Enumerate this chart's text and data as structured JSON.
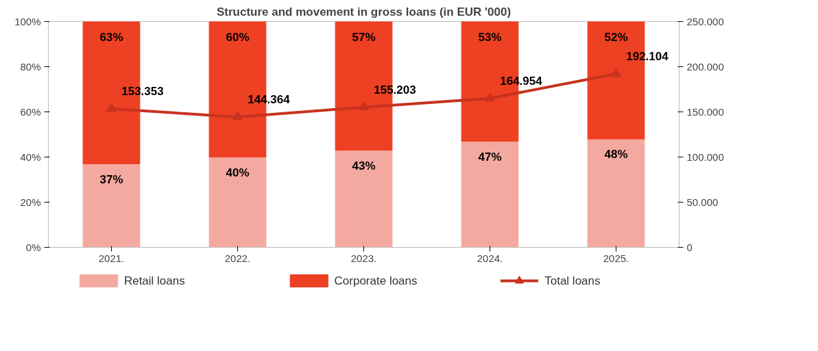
{
  "chart_data": {
    "type": "bar",
    "title": "Structure and movement in gross loans (in EUR '000)",
    "stacked": true,
    "categories": [
      "2021.",
      "2022.",
      "2023.",
      "2024.",
      "2025."
    ],
    "series": [
      {
        "name": "Retail loans",
        "color": "#f4a9a0",
        "values": [
          37,
          40,
          43,
          47,
          48
        ],
        "value_labels": [
          "37%",
          "40%",
          "43%",
          "47%",
          "48%"
        ]
      },
      {
        "name": "Corporate loans",
        "color": "#ee4023",
        "values": [
          63,
          60,
          57,
          53,
          52
        ],
        "value_labels": [
          "63%",
          "60%",
          "57%",
          "53%",
          "52%"
        ]
      },
      {
        "name": "Total loans",
        "type": "line",
        "axis": "y2",
        "color": "#c8321f",
        "marker": "triangle",
        "values": [
          153353,
          144364,
          155203,
          164954,
          192104
        ],
        "value_labels": [
          "153.353",
          "144.364",
          "155.203",
          "164.954",
          "192.104"
        ]
      }
    ],
    "ylim": [
      0,
      100
    ],
    "yticks": [
      {
        "value": 0,
        "label": "0%"
      },
      {
        "value": 20,
        "label": "20%"
      },
      {
        "value": 40,
        "label": "40%"
      },
      {
        "value": 60,
        "label": "60%"
      },
      {
        "value": 80,
        "label": "80%"
      },
      {
        "value": 100,
        "label": "100%"
      }
    ],
    "y2lim": [
      0,
      250000
    ],
    "y2ticks": [
      0,
      {
        "value": 50000,
        "label": "50.000"
      },
      {
        "value": 100000,
        "label": "100.000"
      },
      {
        "value": 150000,
        "label": "150.000"
      },
      {
        "value": 200000,
        "label": "200.000"
      },
      {
        "value": 250000,
        "label": "250.000"
      }
    ],
    "grid": false,
    "legend": "bottom"
  }
}
